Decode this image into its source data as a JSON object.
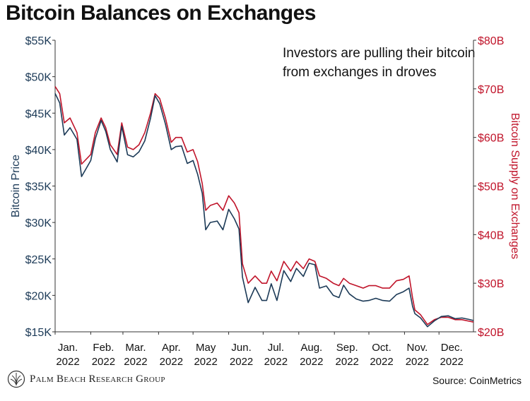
{
  "title": "Bitcoin Balances on Exchanges",
  "annotation": [
    "Investors are pulling their bitcoin",
    "from exchanges in droves"
  ],
  "source": "Source: CoinMetrics",
  "brand": "Palm Beach Research Group",
  "colors": {
    "price": "#1c3a57",
    "supply": "#c0142a",
    "text": "#111111"
  },
  "chart_data": {
    "type": "line",
    "title": "Bitcoin Balances on Exchanges",
    "x_ticks": [
      {
        "month": "Jan.",
        "year": "2022"
      },
      {
        "month": "Feb.",
        "year": "2022"
      },
      {
        "month": "Mar.",
        "year": "2022"
      },
      {
        "month": "Apr.",
        "year": "2022"
      },
      {
        "month": "May",
        "year": "2022"
      },
      {
        "month": "Jun.",
        "year": "2022"
      },
      {
        "month": "Jul.",
        "year": "2022"
      },
      {
        "month": "Aug.",
        "year": "2022"
      },
      {
        "month": "Sep.",
        "year": "2022"
      },
      {
        "month": "Oct.",
        "year": "2022"
      },
      {
        "month": "Nov.",
        "year": "2022"
      },
      {
        "month": "Dec.",
        "year": "2022"
      }
    ],
    "y_left": {
      "label": "Bitcoin Price",
      "range": [
        15000,
        55000
      ],
      "ticks": [
        "$15K",
        "$20K",
        "$25K",
        "$30K",
        "$35K",
        "$40K",
        "$45K",
        "$50K",
        "$55K"
      ]
    },
    "y_right": {
      "label": "Bitcoin Supply on Exchanges",
      "range": [
        20,
        80
      ],
      "ticks": [
        "$20B",
        "$30B",
        "$40B",
        "$50B",
        "$60B",
        "$70B",
        "$80B"
      ]
    },
    "series": [
      {
        "name": "Bitcoin Price",
        "axis": "left",
        "color": "#1c3a57",
        "x": [
          "2022-01-01",
          "2022-01-05",
          "2022-01-09",
          "2022-01-14",
          "2022-01-20",
          "2022-01-24",
          "2022-02-01",
          "2022-02-05",
          "2022-02-10",
          "2022-02-14",
          "2022-02-18",
          "2022-02-24",
          "2022-02-28",
          "2022-03-05",
          "2022-03-10",
          "2022-03-15",
          "2022-03-20",
          "2022-03-25",
          "2022-03-29",
          "2022-04-02",
          "2022-04-07",
          "2022-04-12",
          "2022-04-16",
          "2022-04-21",
          "2022-04-26",
          "2022-05-01",
          "2022-05-05",
          "2022-05-09",
          "2022-05-12",
          "2022-05-16",
          "2022-05-22",
          "2022-05-27",
          "2022-06-01",
          "2022-06-06",
          "2022-06-10",
          "2022-06-13",
          "2022-06-18",
          "2022-06-24",
          "2022-06-30",
          "2022-07-04",
          "2022-07-08",
          "2022-07-13",
          "2022-07-19",
          "2022-07-25",
          "2022-07-30",
          "2022-08-05",
          "2022-08-10",
          "2022-08-15",
          "2022-08-19",
          "2022-08-25",
          "2022-08-31",
          "2022-09-05",
          "2022-09-09",
          "2022-09-14",
          "2022-09-20",
          "2022-09-26",
          "2022-10-01",
          "2022-10-07",
          "2022-10-13",
          "2022-10-19",
          "2022-10-25",
          "2022-10-31",
          "2022-11-05",
          "2022-11-08",
          "2022-11-10",
          "2022-11-15",
          "2022-11-21",
          "2022-11-27",
          "2022-12-03",
          "2022-12-09",
          "2022-12-15",
          "2022-12-21",
          "2022-12-27",
          "2022-12-31"
        ],
        "values": [
          47700,
          46400,
          42000,
          43000,
          41400,
          36300,
          38500,
          41500,
          44000,
          42500,
          40000,
          38300,
          43200,
          39300,
          39000,
          39700,
          41200,
          44300,
          47400,
          46300,
          43500,
          40000,
          40400,
          40500,
          38100,
          38500,
          36600,
          34000,
          29000,
          30000,
          30200,
          29000,
          31800,
          30500,
          29100,
          22500,
          19000,
          21100,
          19300,
          19300,
          21600,
          19300,
          23400,
          21900,
          23700,
          22600,
          24400,
          24200,
          21000,
          21300,
          20000,
          19700,
          21400,
          20200,
          19500,
          19200,
          19300,
          19600,
          19300,
          19200,
          20100,
          20500,
          21000,
          18500,
          17500,
          16900,
          15700,
          16500,
          17100,
          17200,
          16800,
          16900,
          16700,
          16550
        ]
      },
      {
        "name": "Bitcoin Supply on Exchanges",
        "axis": "right",
        "color": "#c0142a",
        "x": [
          "2022-01-01",
          "2022-01-05",
          "2022-01-09",
          "2022-01-14",
          "2022-01-20",
          "2022-01-24",
          "2022-02-01",
          "2022-02-05",
          "2022-02-10",
          "2022-02-14",
          "2022-02-18",
          "2022-02-24",
          "2022-02-28",
          "2022-03-05",
          "2022-03-10",
          "2022-03-15",
          "2022-03-20",
          "2022-03-25",
          "2022-03-29",
          "2022-04-02",
          "2022-04-07",
          "2022-04-12",
          "2022-04-16",
          "2022-04-21",
          "2022-04-26",
          "2022-05-01",
          "2022-05-05",
          "2022-05-09",
          "2022-05-12",
          "2022-05-16",
          "2022-05-22",
          "2022-05-27",
          "2022-06-01",
          "2022-06-06",
          "2022-06-10",
          "2022-06-13",
          "2022-06-18",
          "2022-06-24",
          "2022-06-30",
          "2022-07-04",
          "2022-07-08",
          "2022-07-13",
          "2022-07-19",
          "2022-07-25",
          "2022-07-30",
          "2022-08-05",
          "2022-08-10",
          "2022-08-15",
          "2022-08-19",
          "2022-08-25",
          "2022-08-31",
          "2022-09-05",
          "2022-09-09",
          "2022-09-14",
          "2022-09-20",
          "2022-09-26",
          "2022-10-01",
          "2022-10-07",
          "2022-10-13",
          "2022-10-19",
          "2022-10-25",
          "2022-10-31",
          "2022-11-05",
          "2022-11-08",
          "2022-11-10",
          "2022-11-15",
          "2022-11-21",
          "2022-11-27",
          "2022-12-03",
          "2022-12-09",
          "2022-12-15",
          "2022-12-21",
          "2022-12-27",
          "2022-12-31"
        ],
        "values": [
          70.5,
          69,
          63,
          64,
          61,
          54.5,
          56.5,
          61,
          64,
          62,
          58.5,
          56.5,
          63,
          58,
          57.5,
          58.5,
          61,
          65,
          69,
          68,
          64,
          59,
          60,
          60,
          57,
          57.5,
          55,
          50.5,
          45,
          46,
          46.5,
          45,
          48,
          46.5,
          44.5,
          34,
          30,
          31.5,
          30,
          30,
          32.5,
          30.5,
          34.5,
          32.5,
          34.5,
          33,
          35,
          34.5,
          31.5,
          31,
          30,
          29.5,
          31,
          30,
          29.5,
          29,
          29.5,
          29.5,
          29,
          29,
          30.5,
          30.8,
          31.5,
          27,
          24.5,
          23.5,
          21.5,
          22.5,
          23,
          23,
          22.5,
          22.5,
          22.2,
          22
        ]
      }
    ]
  }
}
